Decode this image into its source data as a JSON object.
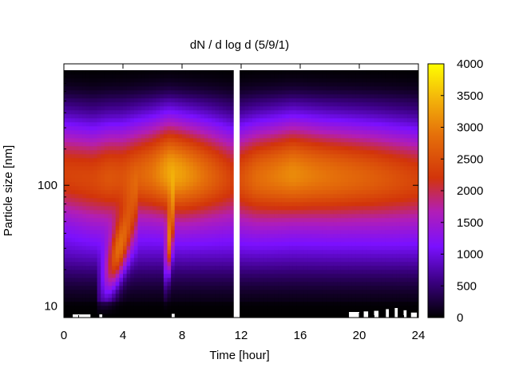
{
  "chart_data": {
    "type": "heatmap",
    "title": "dN / d log d (5/9/1)",
    "xlabel": "Time [hour]",
    "ylabel": "Particle size [nm]",
    "x_range": [
      0,
      24
    ],
    "y_range_nm": [
      8,
      900
    ],
    "y_scale": "log",
    "x_ticks": [
      0,
      4,
      8,
      12,
      16,
      20,
      24
    ],
    "x_tick_labels": [
      "0",
      "4",
      "8",
      "12",
      "16",
      "20",
      "24"
    ],
    "y_ticks": [
      10,
      100
    ],
    "y_tick_labels": [
      "10",
      "100"
    ],
    "colorbar": {
      "range": [
        0,
        4000
      ],
      "ticks": [
        0,
        500,
        1000,
        1500,
        2000,
        2500,
        3000,
        3500,
        4000
      ],
      "tick_labels": [
        "0",
        "500",
        "1000",
        "1500",
        "2000",
        "2500",
        "3000",
        "3500",
        "4000"
      ],
      "colormap": [
        "#000000",
        "#3a0080",
        "#7a10ff",
        "#b21eb5",
        "#d2340a",
        "#e5700a",
        "#f4b80a",
        "#ffff00"
      ]
    },
    "data_gap_hours": [
      11.5,
      11.9
    ],
    "mode_diameter_nm": [
      [
        0,
        125
      ],
      [
        2,
        115
      ],
      [
        4,
        120
      ],
      [
        7,
        130
      ],
      [
        8,
        125
      ],
      [
        10,
        120
      ],
      [
        11.4,
        115
      ],
      [
        12,
        115
      ],
      [
        14,
        120
      ],
      [
        15.5,
        125
      ],
      [
        18,
        120
      ],
      [
        20,
        118
      ],
      [
        24,
        112
      ]
    ],
    "peak_concentration": [
      [
        0,
        2350
      ],
      [
        2,
        2400
      ],
      [
        3,
        2550
      ],
      [
        4,
        2500
      ],
      [
        6,
        2900
      ],
      [
        7.2,
        3350
      ],
      [
        8,
        3250
      ],
      [
        9,
        3000
      ],
      [
        11.4,
        2300
      ],
      [
        12,
        2500
      ],
      [
        13,
        2800
      ],
      [
        15.5,
        3100
      ],
      [
        17,
        2950
      ],
      [
        19,
        2800
      ],
      [
        21,
        2650
      ],
      [
        24,
        2350
      ]
    ],
    "nucleation_events": [
      {
        "start_hour": 2.3,
        "end_hour": 5.0,
        "min_size_nm": 12,
        "peak": 2100
      },
      {
        "start_hour": 6.8,
        "end_hour": 7.5,
        "min_size_nm": 20,
        "peak": 2000
      }
    ]
  }
}
